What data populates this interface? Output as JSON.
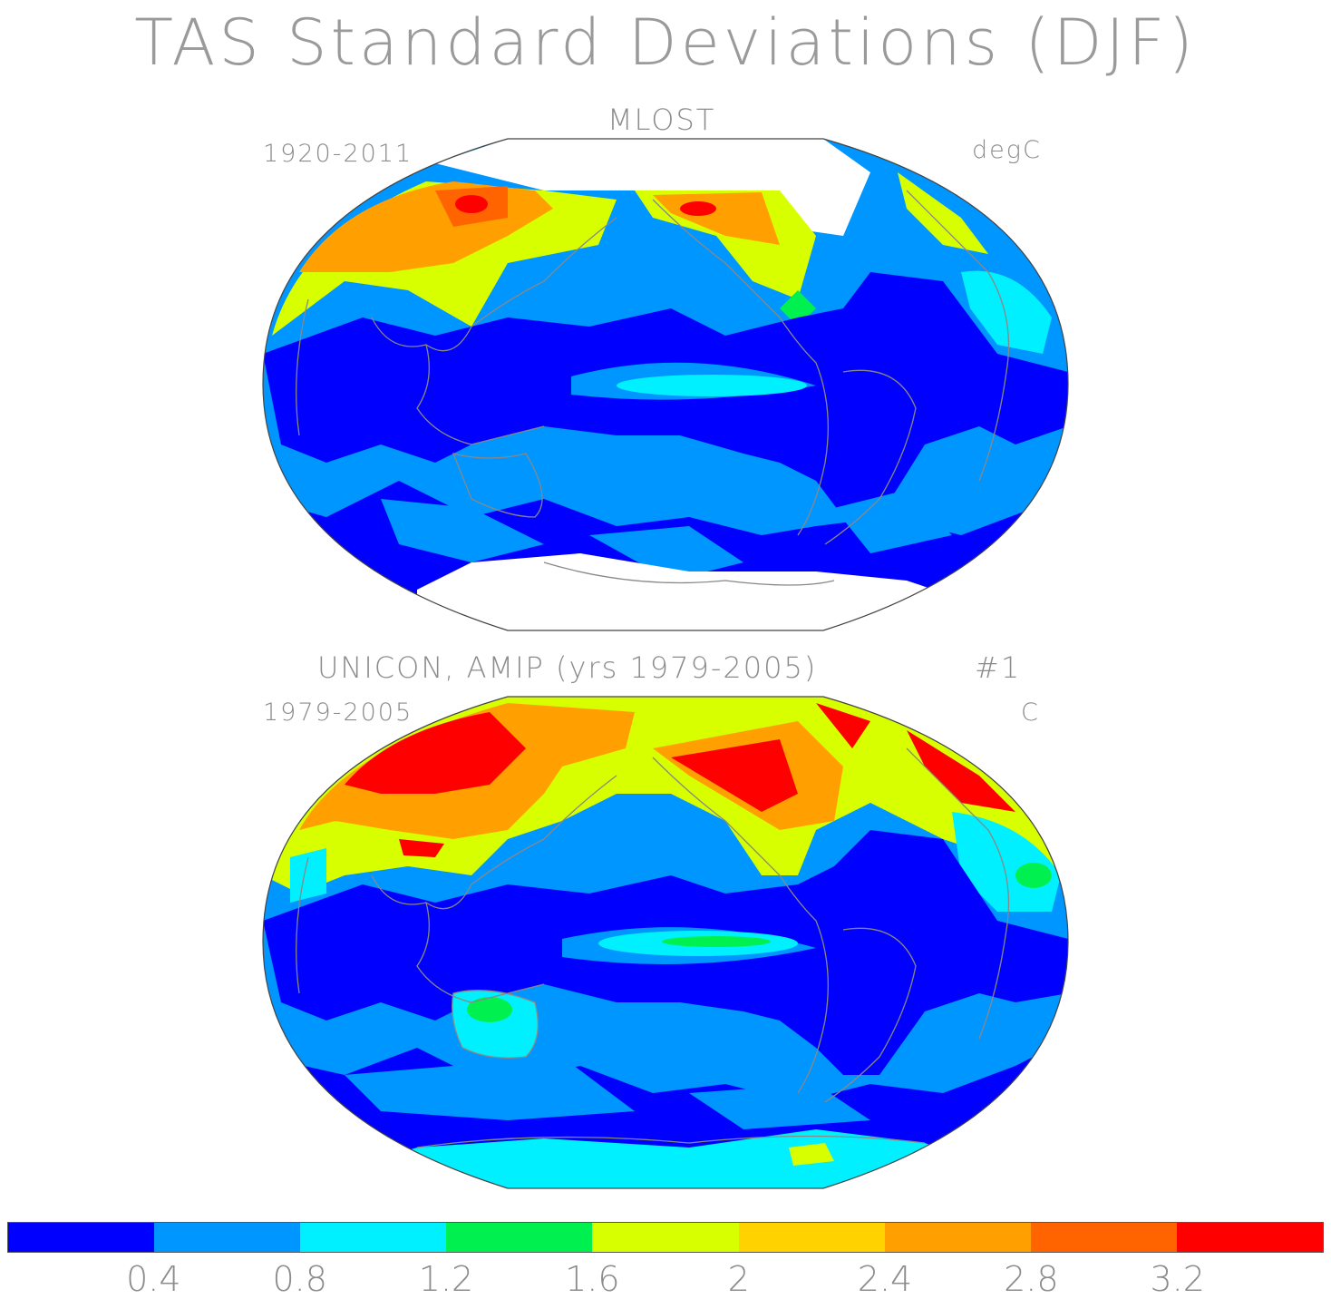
{
  "title": "TAS Standard Deviations (DJF)",
  "panels": [
    {
      "title": "MLOST",
      "period": "1920-2011",
      "units": "degC"
    },
    {
      "title": "UNICON, AMIP (yrs 1979-2005)",
      "tag": "#1",
      "period": "1979-2005",
      "units": "C"
    }
  ],
  "colorbar": {
    "colors": [
      "#0000ff",
      "#0096ff",
      "#00f0ff",
      "#00f050",
      "#d7ff00",
      "#ffd200",
      "#ffa000",
      "#ff6400",
      "#ff0000"
    ],
    "tick_labels": [
      "0.4",
      "0.8",
      "1.2",
      "1.6",
      "2",
      "2.4",
      "2.8",
      "3.2"
    ]
  },
  "colors": {
    "coast": "#888888",
    "land_missing": "#ffffff"
  }
}
